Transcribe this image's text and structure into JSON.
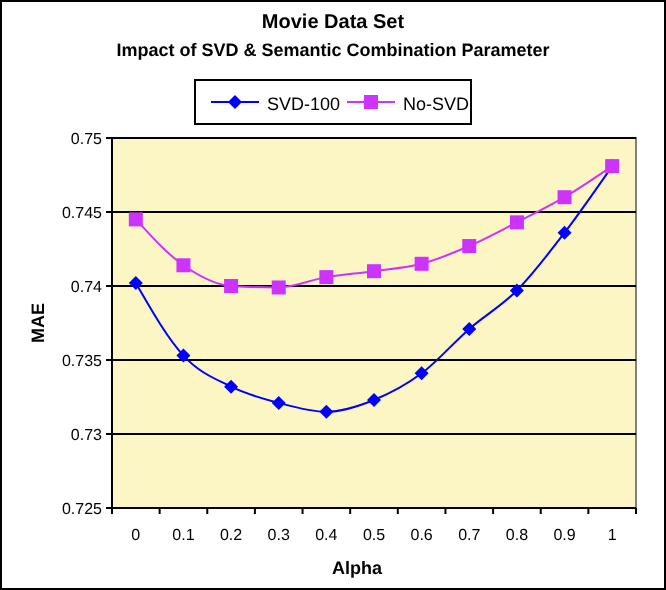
{
  "chart_data": {
    "type": "line",
    "title": "Movie Data Set",
    "subtitle": "Impact of SVD & Semantic Combination Parameter",
    "xlabel": "Alpha",
    "ylabel": "MAE",
    "categories": [
      "0",
      "0.1",
      "0.2",
      "0.3",
      "0.4",
      "0.5",
      "0.6",
      "0.7",
      "0.8",
      "0.9",
      "1"
    ],
    "series": [
      {
        "name": "SVD-100",
        "color": "#0000ff",
        "marker": "diamond",
        "values": [
          0.7402,
          0.7353,
          0.7332,
          0.7321,
          0.7315,
          0.7323,
          0.7341,
          0.7371,
          0.7397,
          0.7436,
          0.7481
        ]
      },
      {
        "name": "No-SVD",
        "color": "#cc33ff",
        "marker": "square",
        "values": [
          0.7445,
          0.7414,
          0.74,
          0.7399,
          0.7406,
          0.741,
          0.7415,
          0.7427,
          0.7443,
          0.746,
          0.7481
        ]
      }
    ],
    "ylim": [
      0.725,
      0.75
    ],
    "yticks": [
      0.725,
      0.73,
      0.735,
      0.74,
      0.745,
      0.75
    ],
    "grid": "y",
    "legend": "top"
  }
}
